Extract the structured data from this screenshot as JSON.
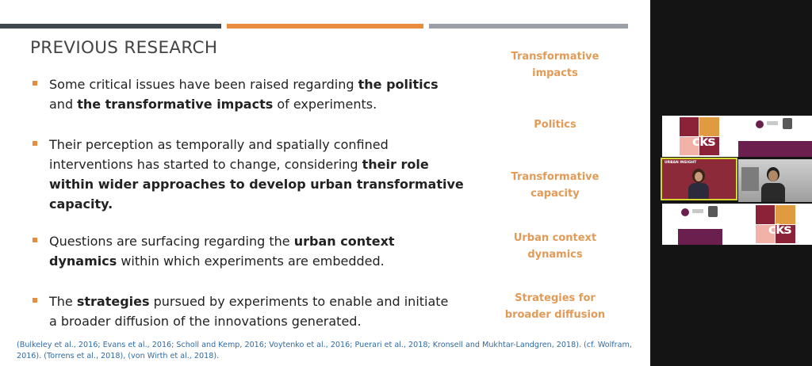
{
  "slide": {
    "title": "PREVIOUS RESEARCH",
    "bullets": [
      {
        "parts": [
          {
            "text": "Some critical issues have been raised regarding ",
            "bold": false
          },
          {
            "text": "the politics",
            "bold": true
          },
          {
            "text": "\nand ",
            "bold": false
          },
          {
            "text": "the transformative impacts",
            "bold": true
          },
          {
            "text": " of experiments.",
            "bold": false
          }
        ]
      },
      {
        "parts": [
          {
            "text": "Their perception as temporally and spatially confined\ninterventions has started to change, considering ",
            "bold": false
          },
          {
            "text": "their role\nwithin wider approaches to develop urban transformative\ncapacity.",
            "bold": true
          }
        ]
      },
      {
        "parts": [
          {
            "text": "Questions are surfacing regarding the ",
            "bold": false
          },
          {
            "text": "urban context\ndynamics",
            "bold": true
          },
          {
            "text": " within which experiments  are embedded.",
            "bold": false
          }
        ]
      },
      {
        "parts": [
          {
            "text": "The ",
            "bold": false
          },
          {
            "text": "strategies",
            "bold": true
          },
          {
            "text": " pursued by experiments  to enable and initiate\na broader diffusion of the innovations generated.",
            "bold": false
          }
        ]
      }
    ],
    "side_labels": [
      "Transformative\nimpacts",
      "Politics",
      "Transformative\ncapacity",
      "Urban context\ndynamics",
      "Strategies for\nbroader diffusion"
    ],
    "citation_line1": "(Bulkeley et al., 2016; Evans et al., 2016; Scholl and Kemp, 2016; Voytenko et al., 2016; Puerari et al., 2018; Kronsell and Mukhtar-Landgren, 2018). (cf. Wolfram,",
    "citation_line2": "2016). (Torrens et al., 2018), (von Wirth et al., 2018).",
    "colors": {
      "accent": "#e88c3d",
      "dark_bar": "#40474d",
      "gray_bar": "#9aa0a6",
      "side_label": "#e29a57",
      "citation": "#2f6aa6"
    }
  },
  "video_panel": {
    "logo_text": "cks",
    "tile3_label": "URBAN INSIGHT",
    "active_speaker_border": "#d6d633"
  }
}
